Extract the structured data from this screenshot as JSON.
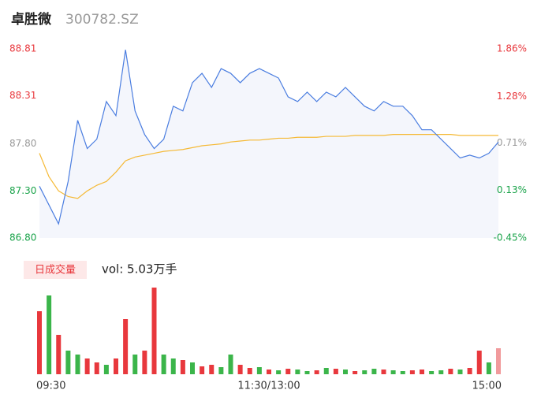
{
  "chart_data": {
    "type": "intraday",
    "title": "卓胜微",
    "subtitle": "300782.SZ",
    "x": [
      0,
      5,
      10,
      15,
      20,
      25,
      30,
      35,
      40,
      45,
      50,
      55,
      60,
      65,
      70,
      75,
      80,
      85,
      90,
      95,
      100,
      105,
      110,
      115,
      120,
      125,
      130,
      135,
      140,
      145,
      150,
      155,
      160,
      165,
      170,
      175,
      180,
      185,
      190,
      195,
      200,
      205,
      210,
      215,
      220,
      225,
      230,
      235,
      240
    ],
    "xlim": [
      0,
      240
    ],
    "xticks": [
      {
        "value": 0,
        "label": "09:30"
      },
      {
        "value": 120,
        "label": "11:30/13:00"
      },
      {
        "value": 240,
        "label": "15:00"
      }
    ],
    "series": [
      {
        "name": "price",
        "color": "#4a7de0",
        "values": [
          87.35,
          87.15,
          86.95,
          87.4,
          88.05,
          87.75,
          87.85,
          88.25,
          88.1,
          88.8,
          88.15,
          87.9,
          87.75,
          87.85,
          88.2,
          88.15,
          88.45,
          88.55,
          88.4,
          88.6,
          88.55,
          88.45,
          88.55,
          88.6,
          88.55,
          88.5,
          88.3,
          88.25,
          88.35,
          88.25,
          88.35,
          88.3,
          88.4,
          88.3,
          88.2,
          88.15,
          88.25,
          88.2,
          88.2,
          88.1,
          87.95,
          87.95,
          87.85,
          87.75,
          87.65,
          87.68,
          87.65,
          87.7,
          87.82
        ]
      },
      {
        "name": "average",
        "color": "#f5b935",
        "values": [
          87.7,
          87.45,
          87.3,
          87.24,
          87.22,
          87.3,
          87.36,
          87.4,
          87.5,
          87.62,
          87.66,
          87.68,
          87.7,
          87.72,
          87.73,
          87.74,
          87.76,
          87.78,
          87.79,
          87.8,
          87.82,
          87.83,
          87.84,
          87.84,
          87.85,
          87.86,
          87.86,
          87.87,
          87.87,
          87.87,
          87.88,
          87.88,
          87.88,
          87.89,
          87.89,
          87.89,
          87.89,
          87.9,
          87.9,
          87.9,
          87.9,
          87.9,
          87.9,
          87.9,
          87.89,
          87.89,
          87.89,
          87.89,
          87.89
        ]
      }
    ],
    "ylim": [
      86.8,
      88.81
    ],
    "yticks": [
      {
        "value": 88.81,
        "label": "88.81",
        "color": "#e8383d"
      },
      {
        "value": 88.31,
        "label": "88.31",
        "color": "#e8383d"
      },
      {
        "value": 87.8,
        "label": "87.80",
        "color": "#999999"
      },
      {
        "value": 87.3,
        "label": "87.30",
        "color": "#1aa34a"
      },
      {
        "value": 86.8,
        "label": "86.80",
        "color": "#1aa34a"
      }
    ],
    "y2lim": [
      -0.45,
      1.86
    ],
    "y2ticks": [
      {
        "value": 1.86,
        "label": "1.86%",
        "color": "#e8383d"
      },
      {
        "value": 1.28,
        "label": "1.28%",
        "color": "#e8383d"
      },
      {
        "value": 0.71,
        "label": "0.71%",
        "color": "#999999"
      },
      {
        "value": 0.13,
        "label": "0.13%",
        "color": "#1aa34a"
      },
      {
        "value": -0.45,
        "label": "-0.45%",
        "color": "#1aa34a"
      }
    ],
    "volume": {
      "button": "日成交量",
      "label": "vol: 5.03万手",
      "values": [
        800,
        1000,
        500,
        300,
        250,
        200,
        150,
        120,
        200,
        700,
        250,
        300,
        1100,
        250,
        200,
        180,
        150,
        100,
        120,
        90,
        250,
        120,
        80,
        90,
        60,
        50,
        70,
        60,
        40,
        50,
        80,
        70,
        60,
        40,
        50,
        70,
        60,
        50,
        40,
        50,
        60,
        40,
        50,
        70,
        60,
        80,
        300,
        150,
        330
      ],
      "colors": [
        "#e8383d",
        "#3bb54a",
        "#e8383d",
        "#3bb54a",
        "#3bb54a",
        "#e8383d",
        "#e8383d",
        "#3bb54a",
        "#e8383d",
        "#e8383d",
        "#3bb54a",
        "#e8383d",
        "#e8383d",
        "#3bb54a",
        "#3bb54a",
        "#e8383d",
        "#3bb54a",
        "#e8383d",
        "#e8383d",
        "#3bb54a",
        "#3bb54a",
        "#e8383d",
        "#e8383d",
        "#3bb54a",
        "#e8383d",
        "#3bb54a",
        "#e8383d",
        "#3bb54a",
        "#3bb54a",
        "#e8383d",
        "#3bb54a",
        "#e8383d",
        "#3bb54a",
        "#e8383d",
        "#3bb54a",
        "#3bb54a",
        "#e8383d",
        "#3bb54a",
        "#3bb54a",
        "#e8383d",
        "#e8383d",
        "#3bb54a",
        "#3bb54a",
        "#e8383d",
        "#3bb54a",
        "#e8383d",
        "#e8383d",
        "#3bb54a",
        "#f19a9c"
      ]
    }
  }
}
